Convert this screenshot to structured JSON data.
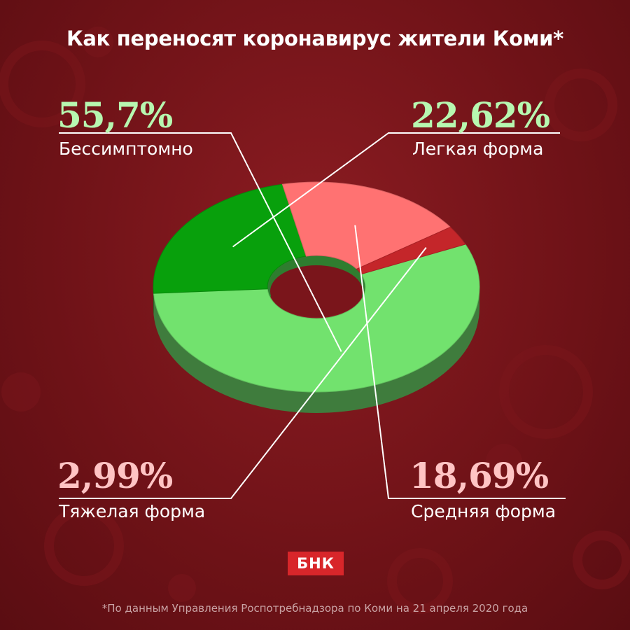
{
  "title": "Как переносят коронавирус жители Коми*",
  "logo_text": "БНК",
  "footnote": "*По данным Управления Роспотребнадзора по Коми на 21 апреля 2020 года",
  "colors": {
    "asymptomatic": "#72e26e",
    "mild": "#08a00c",
    "moderate": "#ff7272",
    "severe": "#c4262a",
    "label_green": "#b7f7b0",
    "label_pink": "#ffc4c4"
  },
  "chart_data": {
    "type": "pie",
    "title": "Как переносят коронавирус жители Коми*",
    "unit": "%",
    "slices": [
      {
        "label": "Бессимптомно",
        "value": 55.7,
        "value_label": "55,7%"
      },
      {
        "label": "Легкая форма",
        "value": 22.62,
        "value_label": "22,62%"
      },
      {
        "label": "Средняя форма",
        "value": 18.69,
        "value_label": "18,69%"
      },
      {
        "label": "Тяжелая форма",
        "value": 2.99,
        "value_label": "2,99%"
      }
    ]
  }
}
